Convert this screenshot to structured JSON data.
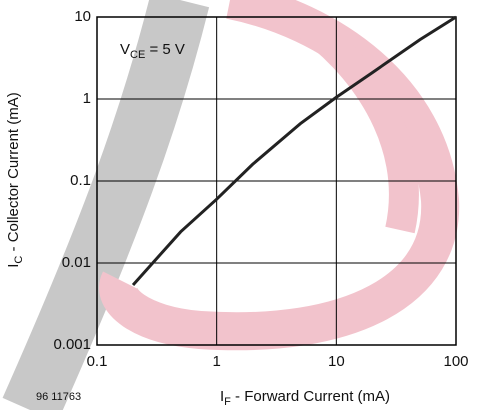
{
  "chart_data": {
    "type": "line",
    "annotation": {
      "symbol": "V",
      "subscript": "CE",
      "text": " = 5 V"
    },
    "ylabel": {
      "symbol": "I",
      "subscript": "C",
      "text": " - Collector Current (mA)"
    },
    "xlabel": {
      "symbol": "I",
      "subscript": "F",
      "text": " - Forward Current (mA)"
    },
    "footnote": "96 11763",
    "xscale": "log",
    "yscale": "log",
    "xlim": [
      0.1,
      100
    ],
    "ylim": [
      0.001,
      10
    ],
    "xticks": [
      0.1,
      1,
      10,
      100
    ],
    "yticks": [
      0.001,
      0.01,
      0.1,
      1,
      10
    ],
    "grid": true,
    "series": [
      {
        "color": "#222222",
        "x": [
          0.2,
          0.5,
          1,
          2,
          5,
          10,
          20,
          50,
          100
        ],
        "values": [
          0.0054,
          0.024,
          0.06,
          0.16,
          0.5,
          1.05,
          2.1,
          5.3,
          10
        ]
      }
    ]
  }
}
